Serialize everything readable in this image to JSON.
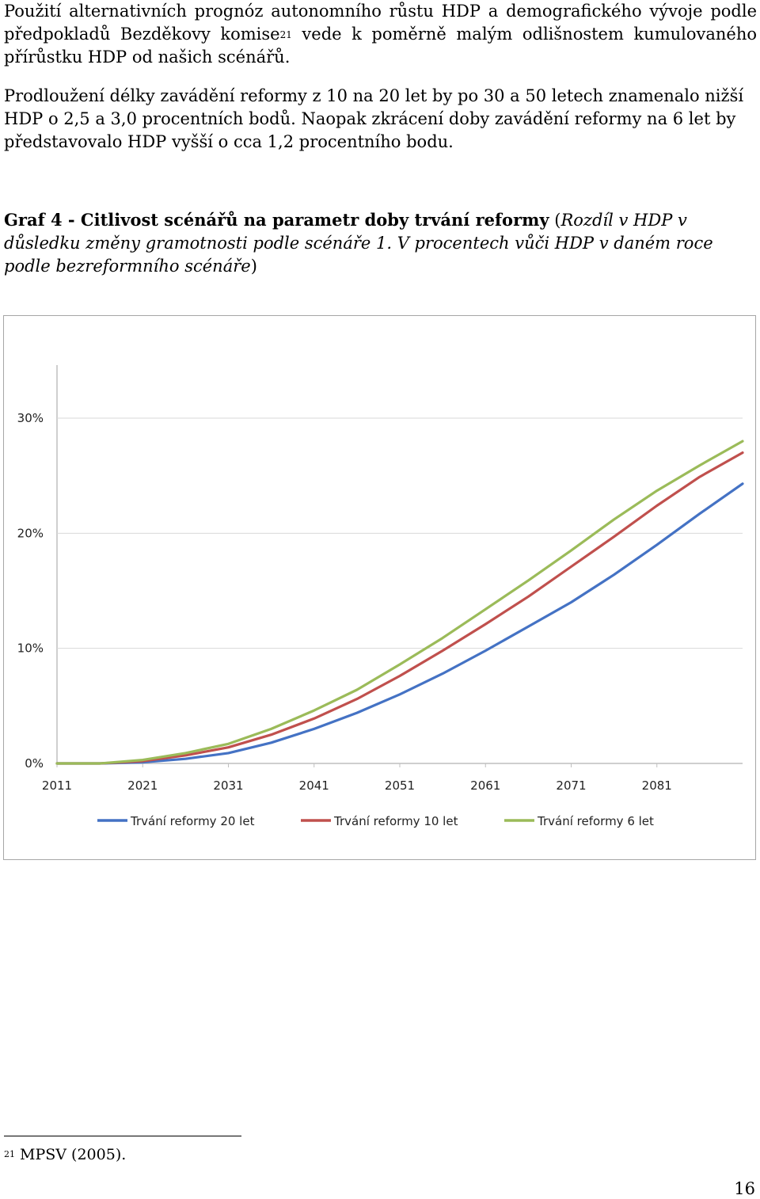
{
  "paragraph1": {
    "before_ref": "Použití alternativních prognóz autonomního růstu HDP a demografického vývoje podle předpokladů Bezděkovy komise",
    "ref": "21",
    "after_ref": " vede k poměrně malým odlišnostem kumulovaného přírůstku HDP od našich scénářů."
  },
  "paragraph2": "Prodloužení délky zavádění reformy z 10 na 20 let by po 30 a 50 letech znamenalo nižší HDP o 2,5 a 3,0 procentních bodů. Naopak zkrácení doby zavádění reformy na 6 let by představovalo HDP vyšší o cca 1,2 procentního bodu.",
  "caption": {
    "bold": "Graf 4 - Citlivost scénářů na parametr doby trvání reformy",
    "open_paren": " (",
    "italic": "Rozdíl v HDP v důsledku změny gramotnosti podle scénáře 1. V procentech vůči HDP v daném roce podle bezreformního scénáře",
    "close_paren": ")"
  },
  "footnote": {
    "mark": "21",
    "text": " MPSV (2005)."
  },
  "page_number": "16",
  "chart_data": {
    "type": "line",
    "title": "",
    "xlabel": "",
    "ylabel": "",
    "x_ticks": [
      "2011",
      "2021",
      "2031",
      "2041",
      "2051",
      "2061",
      "2071",
      "2081"
    ],
    "y_ticks": [
      "0%",
      "10%",
      "20%",
      "30%"
    ],
    "xlim": [
      2011,
      2091
    ],
    "ylim": [
      0,
      30
    ],
    "grid": "horizontal",
    "legend_position": "bottom",
    "x": [
      2011,
      2016,
      2021,
      2026,
      2031,
      2036,
      2041,
      2046,
      2051,
      2056,
      2061,
      2066,
      2071,
      2076,
      2081,
      2086,
      2091
    ],
    "series": [
      {
        "name": "Trvání reformy 20 let",
        "color": "#4472c4",
        "values": [
          0.0,
          0.0,
          0.1,
          0.4,
          0.9,
          1.8,
          3.0,
          4.4,
          6.0,
          7.8,
          9.8,
          11.9,
          14.0,
          16.4,
          19.0,
          21.7,
          24.3
        ]
      },
      {
        "name": "Trvání reformy 10 let",
        "color": "#c0504d",
        "values": [
          0.0,
          0.0,
          0.2,
          0.7,
          1.4,
          2.5,
          3.9,
          5.6,
          7.6,
          9.8,
          12.1,
          14.5,
          17.1,
          19.7,
          22.4,
          24.9,
          27.0
        ]
      },
      {
        "name": "Trvání reformy 6 let",
        "color": "#9bbb59",
        "values": [
          0.0,
          0.0,
          0.3,
          0.9,
          1.7,
          3.0,
          4.6,
          6.4,
          8.6,
          10.9,
          13.4,
          15.9,
          18.5,
          21.2,
          23.7,
          25.9,
          28.0
        ]
      }
    ]
  }
}
